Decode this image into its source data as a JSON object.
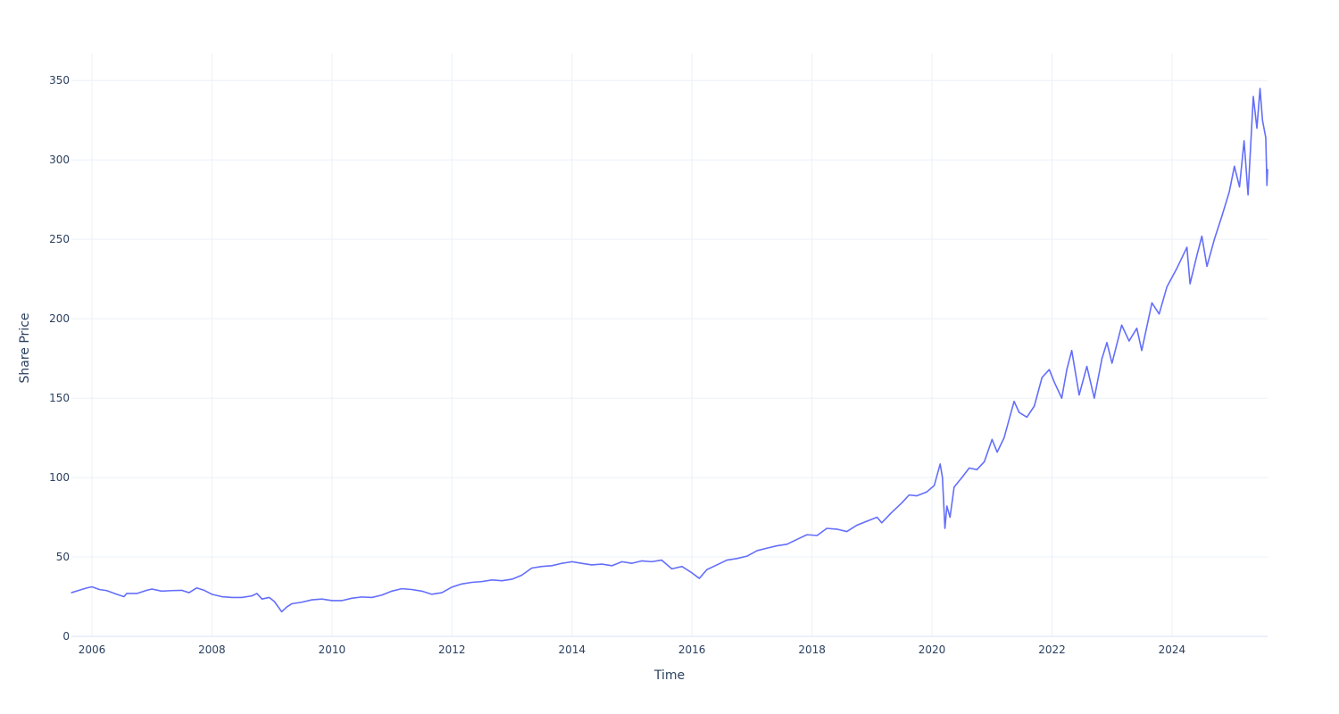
{
  "chart_data": {
    "type": "line",
    "title": "",
    "xlabel": "Time",
    "ylabel": "Share Price",
    "xlim": [
      "2005-08-29",
      "2025-08-05"
    ],
    "ylim": [
      0,
      367
    ],
    "x_ticks": [
      "2006",
      "2008",
      "2010",
      "2012",
      "2014",
      "2016",
      "2018",
      "2020",
      "2022",
      "2024"
    ],
    "y_ticks": [
      0,
      50,
      100,
      150,
      200,
      250,
      300,
      350
    ],
    "grid": true,
    "line_color": "#636efa",
    "series": [
      {
        "points": [
          [
            "2005-08-29",
            27.5
          ],
          [
            "2005-10-15",
            29.0
          ],
          [
            "2005-12-01",
            30.5
          ],
          [
            "2006-01-01",
            31.2
          ],
          [
            "2006-02-15",
            29.5
          ],
          [
            "2006-04-01",
            28.8
          ],
          [
            "2006-06-01",
            26.5
          ],
          [
            "2006-07-15",
            25.0
          ],
          [
            "2006-08-01",
            27.0
          ],
          [
            "2006-10-01",
            27.0
          ],
          [
            "2006-12-01",
            29.0
          ],
          [
            "2007-01-01",
            29.8
          ],
          [
            "2007-03-01",
            28.5
          ],
          [
            "2007-05-01",
            28.8
          ],
          [
            "2007-07-01",
            29.0
          ],
          [
            "2007-08-15",
            27.5
          ],
          [
            "2007-10-01",
            30.5
          ],
          [
            "2007-11-15",
            29.0
          ],
          [
            "2008-01-01",
            26.5
          ],
          [
            "2008-03-01",
            25.0
          ],
          [
            "2008-05-01",
            24.5
          ],
          [
            "2008-07-01",
            24.5
          ],
          [
            "2008-09-01",
            25.5
          ],
          [
            "2008-10-01",
            27.0
          ],
          [
            "2008-11-01",
            23.5
          ],
          [
            "2008-12-15",
            24.5
          ],
          [
            "2009-01-15",
            22.0
          ],
          [
            "2009-03-01",
            15.5
          ],
          [
            "2009-04-01",
            18.5
          ],
          [
            "2009-05-01",
            20.5
          ],
          [
            "2009-07-01",
            21.5
          ],
          [
            "2009-09-01",
            23.0
          ],
          [
            "2009-11-01",
            23.5
          ],
          [
            "2010-01-01",
            22.5
          ],
          [
            "2010-03-01",
            22.5
          ],
          [
            "2010-05-01",
            24.0
          ],
          [
            "2010-07-01",
            24.8
          ],
          [
            "2010-09-01",
            24.5
          ],
          [
            "2010-11-01",
            26.0
          ],
          [
            "2011-01-01",
            28.5
          ],
          [
            "2011-03-01",
            30.0
          ],
          [
            "2011-05-01",
            29.5
          ],
          [
            "2011-07-01",
            28.5
          ],
          [
            "2011-09-01",
            26.5
          ],
          [
            "2011-11-01",
            27.5
          ],
          [
            "2012-01-01",
            31.0
          ],
          [
            "2012-03-01",
            33.0
          ],
          [
            "2012-05-01",
            34.0
          ],
          [
            "2012-07-01",
            34.5
          ],
          [
            "2012-09-01",
            35.5
          ],
          [
            "2012-11-01",
            35.0
          ],
          [
            "2013-01-01",
            36.0
          ],
          [
            "2013-03-01",
            38.5
          ],
          [
            "2013-05-01",
            43.0
          ],
          [
            "2013-07-01",
            44.0
          ],
          [
            "2013-09-01",
            44.5
          ],
          [
            "2013-11-01",
            46.0
          ],
          [
            "2014-01-01",
            47.0
          ],
          [
            "2014-03-01",
            46.0
          ],
          [
            "2014-05-01",
            45.0
          ],
          [
            "2014-07-01",
            45.5
          ],
          [
            "2014-09-01",
            44.5
          ],
          [
            "2014-11-01",
            47.0
          ],
          [
            "2015-01-01",
            46.0
          ],
          [
            "2015-03-01",
            47.5
          ],
          [
            "2015-05-01",
            47.0
          ],
          [
            "2015-07-01",
            48.0
          ],
          [
            "2015-09-01",
            42.5
          ],
          [
            "2015-11-01",
            44.0
          ],
          [
            "2016-01-01",
            40.0
          ],
          [
            "2016-02-15",
            36.5
          ],
          [
            "2016-04-01",
            42.0
          ],
          [
            "2016-06-01",
            45.0
          ],
          [
            "2016-08-01",
            48.0
          ],
          [
            "2016-10-01",
            49.0
          ],
          [
            "2016-12-01",
            50.5
          ],
          [
            "2017-02-01",
            54.0
          ],
          [
            "2017-04-01",
            55.5
          ],
          [
            "2017-06-01",
            57.0
          ],
          [
            "2017-08-01",
            58.0
          ],
          [
            "2017-10-01",
            61.0
          ],
          [
            "2017-12-01",
            64.0
          ],
          [
            "2018-02-01",
            63.5
          ],
          [
            "2018-04-01",
            68.0
          ],
          [
            "2018-06-01",
            67.5
          ],
          [
            "2018-08-01",
            66.0
          ],
          [
            "2018-10-01",
            70.0
          ],
          [
            "2018-12-01",
            72.5
          ],
          [
            "2019-02-01",
            75.0
          ],
          [
            "2019-03-01",
            71.5
          ],
          [
            "2019-05-01",
            78.0
          ],
          [
            "2019-07-01",
            84.0
          ],
          [
            "2019-08-15",
            89.0
          ],
          [
            "2019-10-01",
            88.5
          ],
          [
            "2019-12-01",
            91.0
          ],
          [
            "2020-01-15",
            95.0
          ],
          [
            "2020-02-20",
            108.5
          ],
          [
            "2020-03-05",
            100.0
          ],
          [
            "2020-03-20",
            68.0
          ],
          [
            "2020-04-01",
            82.0
          ],
          [
            "2020-04-20",
            75.0
          ],
          [
            "2020-05-15",
            94.0
          ],
          [
            "2020-07-01",
            100.0
          ],
          [
            "2020-08-15",
            106.0
          ],
          [
            "2020-10-01",
            105.0
          ],
          [
            "2020-11-15",
            110.0
          ],
          [
            "2021-01-01",
            124.0
          ],
          [
            "2021-02-01",
            116.0
          ],
          [
            "2021-03-15",
            125.0
          ],
          [
            "2021-05-15",
            148.0
          ],
          [
            "2021-06-15",
            141.0
          ],
          [
            "2021-08-01",
            138.0
          ],
          [
            "2021-09-15",
            145.0
          ],
          [
            "2021-11-01",
            163.0
          ],
          [
            "2021-12-15",
            168.0
          ],
          [
            "2022-01-15",
            160.0
          ],
          [
            "2022-03-01",
            150.0
          ],
          [
            "2022-04-01",
            168.0
          ],
          [
            "2022-05-01",
            180.0
          ],
          [
            "2022-06-15",
            152.0
          ],
          [
            "2022-08-01",
            170.0
          ],
          [
            "2022-09-15",
            150.0
          ],
          [
            "2022-11-01",
            175.0
          ],
          [
            "2022-12-01",
            185.0
          ],
          [
            "2023-01-01",
            172.0
          ],
          [
            "2023-03-01",
            196.0
          ],
          [
            "2023-04-15",
            186.0
          ],
          [
            "2023-06-01",
            194.0
          ],
          [
            "2023-07-01",
            180.0
          ],
          [
            "2023-09-01",
            210.0
          ],
          [
            "2023-10-15",
            203.0
          ],
          [
            "2023-12-01",
            220.0
          ],
          [
            "2024-02-01",
            232.0
          ],
          [
            "2024-04-01",
            245.0
          ],
          [
            "2024-04-20",
            222.0
          ],
          [
            "2024-06-01",
            240.0
          ],
          [
            "2024-07-01",
            252.0
          ],
          [
            "2024-08-01",
            233.0
          ],
          [
            "2024-09-15",
            250.0
          ],
          [
            "2024-11-01",
            265.0
          ],
          [
            "2024-12-15",
            280.0
          ],
          [
            "2025-01-15",
            296.0
          ],
          [
            "2025-02-15",
            283.0
          ],
          [
            "2025-03-15",
            312.0
          ],
          [
            "2025-04-08",
            278.0
          ],
          [
            "2025-05-10",
            340.0
          ],
          [
            "2025-06-01",
            320.0
          ],
          [
            "2025-06-20",
            345.0
          ],
          [
            "2025-07-05",
            325.0
          ],
          [
            "2025-07-25",
            314.0
          ],
          [
            "2025-08-01",
            284.0
          ],
          [
            "2025-08-05",
            294.0
          ]
        ]
      }
    ]
  }
}
